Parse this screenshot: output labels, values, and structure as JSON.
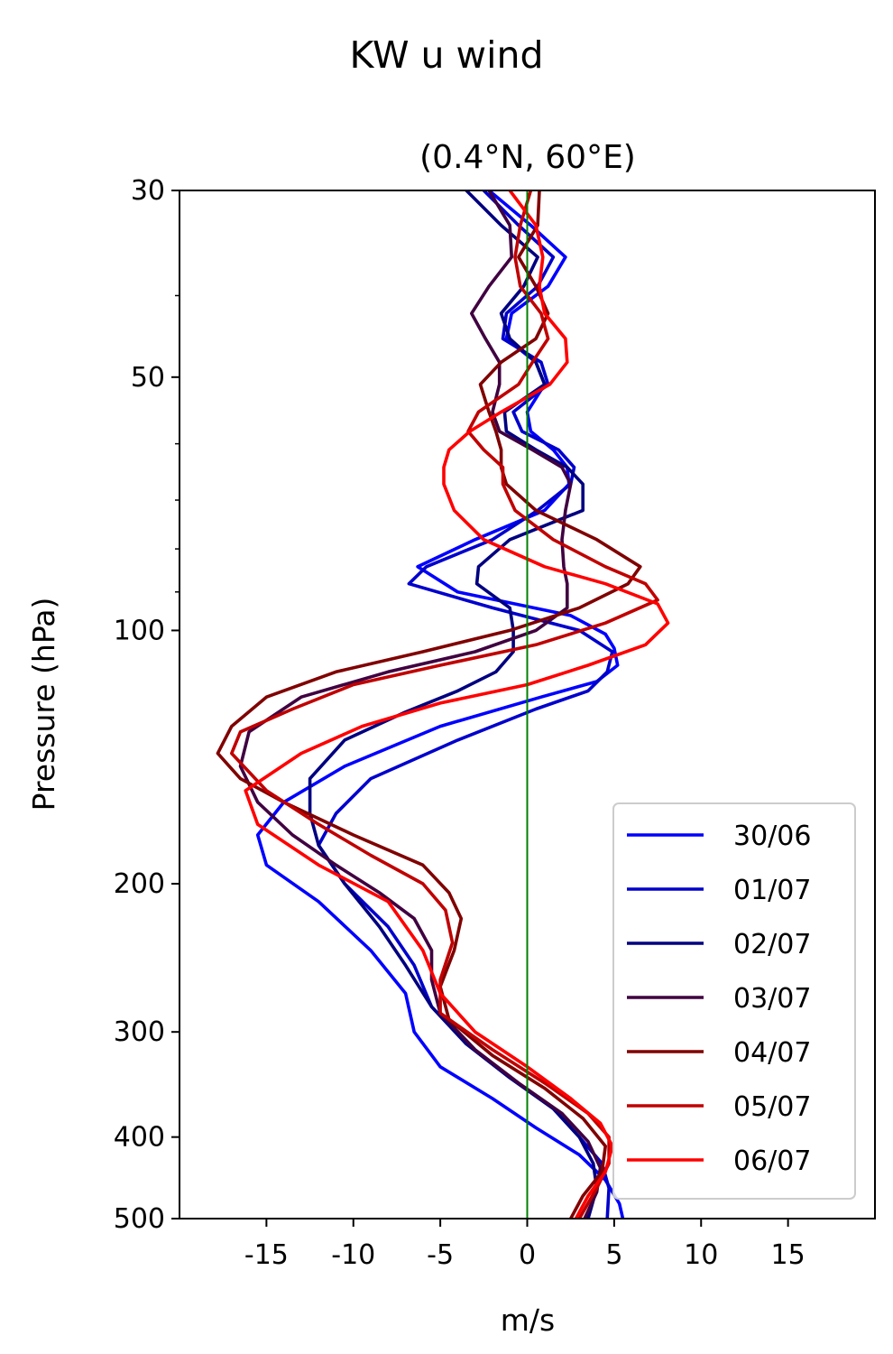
{
  "figure": {
    "suptitle": "KW u wind",
    "title": "(0.4°N, 60°E)"
  },
  "chart_data": {
    "type": "line",
    "title": "(0.4°N, 60°E)",
    "xlabel": "m/s",
    "ylabel": "Pressure (hPa)",
    "xlim": [
      -20,
      20
    ],
    "ylim": [
      500,
      30
    ],
    "yscale": "log",
    "xticks": [
      -15,
      -10,
      -5,
      0,
      5,
      10,
      15
    ],
    "xtick_labels": [
      "-15",
      "-10",
      "-5",
      "0",
      "5",
      "10",
      "15"
    ],
    "yticks": [
      30,
      50,
      100,
      200,
      300,
      400,
      500
    ],
    "ytick_labels": [
      "30",
      "50",
      "100",
      "200",
      "300",
      "400",
      "500"
    ],
    "yminor_ticks": [
      40,
      60,
      70,
      80,
      90
    ],
    "grid": false,
    "legend_position": "lower-right",
    "reference_line": {
      "x": 0,
      "color": "#008000"
    },
    "series": [
      {
        "name": "30/06",
        "color": "#0000ff",
        "points": [
          [
            -2.2,
            30
          ],
          [
            0.2,
            33
          ],
          [
            2.2,
            36
          ],
          [
            1.2,
            39
          ],
          [
            -0.9,
            42
          ],
          [
            -1.2,
            45
          ],
          [
            0.5,
            48
          ],
          [
            1,
            51
          ],
          [
            0,
            55
          ],
          [
            0.2,
            58
          ],
          [
            1.5,
            61
          ],
          [
            2.3,
            64
          ],
          [
            2.4,
            67
          ],
          [
            1,
            72
          ],
          [
            -3,
            78
          ],
          [
            -6.3,
            84
          ],
          [
            -4,
            90
          ],
          [
            2.5,
            96
          ],
          [
            4.5,
            101
          ],
          [
            5,
            105
          ],
          [
            5.2,
            110
          ],
          [
            4,
            115
          ],
          [
            0.8,
            120
          ],
          [
            -5,
            130
          ],
          [
            -10.5,
            145
          ],
          [
            -14,
            160
          ],
          [
            -15.5,
            175
          ],
          [
            -15,
            190
          ],
          [
            -12,
            210
          ],
          [
            -9,
            240
          ],
          [
            -7,
            270
          ],
          [
            -6.5,
            300
          ],
          [
            -5,
            330
          ],
          [
            -2,
            360
          ],
          [
            0.5,
            390
          ],
          [
            3,
            420
          ],
          [
            4.5,
            450
          ],
          [
            5.3,
            480
          ],
          [
            5.5,
            500
          ]
        ]
      },
      {
        "name": "01/07",
        "color": "#0000cc",
        "points": [
          [
            -2.5,
            30
          ],
          [
            -0.5,
            33
          ],
          [
            1.5,
            36
          ],
          [
            0.6,
            39
          ],
          [
            -1.2,
            42
          ],
          [
            -1.4,
            45
          ],
          [
            0.8,
            48
          ],
          [
            1.2,
            51
          ],
          [
            -0.8,
            55
          ],
          [
            -0.3,
            58
          ],
          [
            1.8,
            61
          ],
          [
            2.7,
            64
          ],
          [
            2.5,
            67
          ],
          [
            0.6,
            72
          ],
          [
            -2,
            78
          ],
          [
            -5.8,
            84
          ],
          [
            -6.8,
            88
          ],
          [
            -2,
            94
          ],
          [
            3,
            100
          ],
          [
            4.9,
            106
          ],
          [
            4.6,
            112
          ],
          [
            3.5,
            118
          ],
          [
            0.5,
            124
          ],
          [
            -4,
            135
          ],
          [
            -9,
            150
          ],
          [
            -11,
            165
          ],
          [
            -12,
            180
          ],
          [
            -10.5,
            200
          ],
          [
            -8,
            225
          ],
          [
            -6.5,
            250
          ],
          [
            -5.5,
            280
          ],
          [
            -3.5,
            310
          ],
          [
            -1,
            340
          ],
          [
            1.5,
            370
          ],
          [
            3,
            400
          ],
          [
            4.3,
            430
          ],
          [
            4.7,
            460
          ],
          [
            4.6,
            500
          ]
        ]
      },
      {
        "name": "02/07",
        "color": "#000080",
        "points": [
          [
            -3.5,
            30
          ],
          [
            -1.5,
            33
          ],
          [
            0.6,
            36
          ],
          [
            -0.2,
            39
          ],
          [
            -1.5,
            42
          ],
          [
            -1,
            45
          ],
          [
            0.5,
            48
          ],
          [
            1,
            51
          ],
          [
            -1.3,
            55
          ],
          [
            -1.2,
            58
          ],
          [
            0.5,
            61
          ],
          [
            2.3,
            64
          ],
          [
            3.2,
            67
          ],
          [
            3.2,
            72
          ],
          [
            -1,
            78
          ],
          [
            -2.8,
            84
          ],
          [
            -2.9,
            88
          ],
          [
            -1,
            94
          ],
          [
            -0.8,
            100
          ],
          [
            -0.8,
            106
          ],
          [
            -1.8,
            112
          ],
          [
            -4,
            118
          ],
          [
            -7,
            125
          ],
          [
            -10.5,
            135
          ],
          [
            -12.5,
            150
          ],
          [
            -12.5,
            165
          ],
          [
            -12,
            180
          ],
          [
            -10.5,
            200
          ],
          [
            -8.5,
            225
          ],
          [
            -7,
            250
          ],
          [
            -5.5,
            280
          ],
          [
            -3.5,
            310
          ],
          [
            -1,
            340
          ],
          [
            1.5,
            370
          ],
          [
            3,
            400
          ],
          [
            3.8,
            430
          ],
          [
            4,
            460
          ],
          [
            3.5,
            500
          ]
        ]
      },
      {
        "name": "03/07",
        "color": "#400040",
        "points": [
          [
            -2.2,
            30
          ],
          [
            -1,
            33
          ],
          [
            -0.9,
            36
          ],
          [
            -2.2,
            39
          ],
          [
            -3.2,
            42
          ],
          [
            -2.4,
            45
          ],
          [
            -1.6,
            48
          ],
          [
            -1.6,
            51
          ],
          [
            -2,
            55
          ],
          [
            -1.6,
            58
          ],
          [
            0.3,
            61
          ],
          [
            2,
            64
          ],
          [
            2.5,
            67
          ],
          [
            2.2,
            72
          ],
          [
            2,
            78
          ],
          [
            2.1,
            84
          ],
          [
            2.3,
            88
          ],
          [
            2.3,
            94
          ],
          [
            0.5,
            100
          ],
          [
            -3,
            106
          ],
          [
            -8,
            112
          ],
          [
            -13,
            120
          ],
          [
            -16,
            132
          ],
          [
            -16.5,
            145
          ],
          [
            -15.5,
            160
          ],
          [
            -13.5,
            175
          ],
          [
            -11,
            190
          ],
          [
            -8.5,
            205
          ],
          [
            -6.5,
            220
          ],
          [
            -5.5,
            240
          ],
          [
            -5.5,
            260
          ],
          [
            -5,
            285
          ],
          [
            -3,
            315
          ],
          [
            -0.5,
            345
          ],
          [
            2,
            375
          ],
          [
            3.5,
            405
          ],
          [
            4.2,
            435
          ],
          [
            4,
            465
          ],
          [
            3.3,
            500
          ]
        ]
      },
      {
        "name": "04/07",
        "color": "#800000",
        "points": [
          [
            0.7,
            30
          ],
          [
            0.6,
            33
          ],
          [
            -0.5,
            36
          ],
          [
            0.5,
            39
          ],
          [
            1.2,
            42
          ],
          [
            0.5,
            45
          ],
          [
            -1.5,
            48
          ],
          [
            -2.7,
            51
          ],
          [
            -2.2,
            55
          ],
          [
            -1.8,
            58
          ],
          [
            -1.5,
            61
          ],
          [
            -1.5,
            64
          ],
          [
            -1.2,
            67
          ],
          [
            0.5,
            72
          ],
          [
            4,
            78
          ],
          [
            6.5,
            84
          ],
          [
            5.8,
            88
          ],
          [
            3,
            94
          ],
          [
            -1,
            100
          ],
          [
            -6,
            106
          ],
          [
            -11,
            112
          ],
          [
            -15,
            120
          ],
          [
            -17,
            130
          ],
          [
            -17.8,
            140
          ],
          [
            -16.5,
            150
          ],
          [
            -14,
            160
          ],
          [
            -10,
            175
          ],
          [
            -6,
            190
          ],
          [
            -4.5,
            205
          ],
          [
            -3.8,
            220
          ],
          [
            -4.2,
            240
          ],
          [
            -5,
            265
          ],
          [
            -4.5,
            290
          ],
          [
            -2,
            320
          ],
          [
            1,
            350
          ],
          [
            3.2,
            380
          ],
          [
            4.5,
            410
          ],
          [
            4.3,
            440
          ],
          [
            3.2,
            470
          ],
          [
            2.5,
            500
          ]
        ]
      },
      {
        "name": "05/07",
        "color": "#c00000",
        "points": [
          [
            0.2,
            30
          ],
          [
            -0.4,
            33
          ],
          [
            -0.7,
            36
          ],
          [
            -0.4,
            39
          ],
          [
            0.8,
            42
          ],
          [
            1.2,
            45
          ],
          [
            0.3,
            48
          ],
          [
            -0.5,
            51
          ],
          [
            -2.8,
            55
          ],
          [
            -3.4,
            58
          ],
          [
            -2.5,
            61
          ],
          [
            -1.4,
            64
          ],
          [
            -1.4,
            67
          ],
          [
            -0.7,
            72
          ],
          [
            1.5,
            78
          ],
          [
            4.5,
            84
          ],
          [
            6.8,
            88
          ],
          [
            7.5,
            92
          ],
          [
            4.5,
            98
          ],
          [
            0.5,
            104
          ],
          [
            -5,
            110
          ],
          [
            -10,
            116
          ],
          [
            -13.5,
            124
          ],
          [
            -16.5,
            132
          ],
          [
            -17,
            140
          ],
          [
            -15,
            155
          ],
          [
            -12,
            170
          ],
          [
            -9,
            185
          ],
          [
            -6,
            200
          ],
          [
            -4.7,
            215
          ],
          [
            -4.3,
            235
          ],
          [
            -5,
            260
          ],
          [
            -5,
            285
          ],
          [
            -2,
            315
          ],
          [
            1,
            345
          ],
          [
            3.5,
            375
          ],
          [
            4.7,
            400
          ],
          [
            4.7,
            430
          ],
          [
            4,
            460
          ],
          [
            3,
            500
          ]
        ]
      },
      {
        "name": "06/07",
        "color": "#ff0000",
        "points": [
          [
            -1,
            30
          ],
          [
            0.5,
            33
          ],
          [
            0.9,
            36
          ],
          [
            0.7,
            39
          ],
          [
            1,
            42
          ],
          [
            2.2,
            45
          ],
          [
            2.3,
            48
          ],
          [
            1.3,
            51
          ],
          [
            -1.5,
            55
          ],
          [
            -3.3,
            58
          ],
          [
            -4.5,
            61
          ],
          [
            -4.8,
            64
          ],
          [
            -4.8,
            67
          ],
          [
            -4.2,
            72
          ],
          [
            -2.5,
            78
          ],
          [
            1,
            84
          ],
          [
            4.5,
            88
          ],
          [
            7.5,
            93
          ],
          [
            8.1,
            98
          ],
          [
            6.8,
            104
          ],
          [
            3.5,
            110
          ],
          [
            0,
            116
          ],
          [
            -5,
            122
          ],
          [
            -9.5,
            130
          ],
          [
            -13,
            140
          ],
          [
            -16.2,
            155
          ],
          [
            -15.5,
            170
          ],
          [
            -12,
            190
          ],
          [
            -8,
            210
          ],
          [
            -6,
            240
          ],
          [
            -5,
            270
          ],
          [
            -3,
            300
          ],
          [
            0,
            330
          ],
          [
            2.5,
            360
          ],
          [
            4.2,
            385
          ],
          [
            4.9,
            410
          ],
          [
            4.5,
            440
          ],
          [
            3.5,
            470
          ],
          [
            2.8,
            500
          ]
        ]
      }
    ]
  }
}
